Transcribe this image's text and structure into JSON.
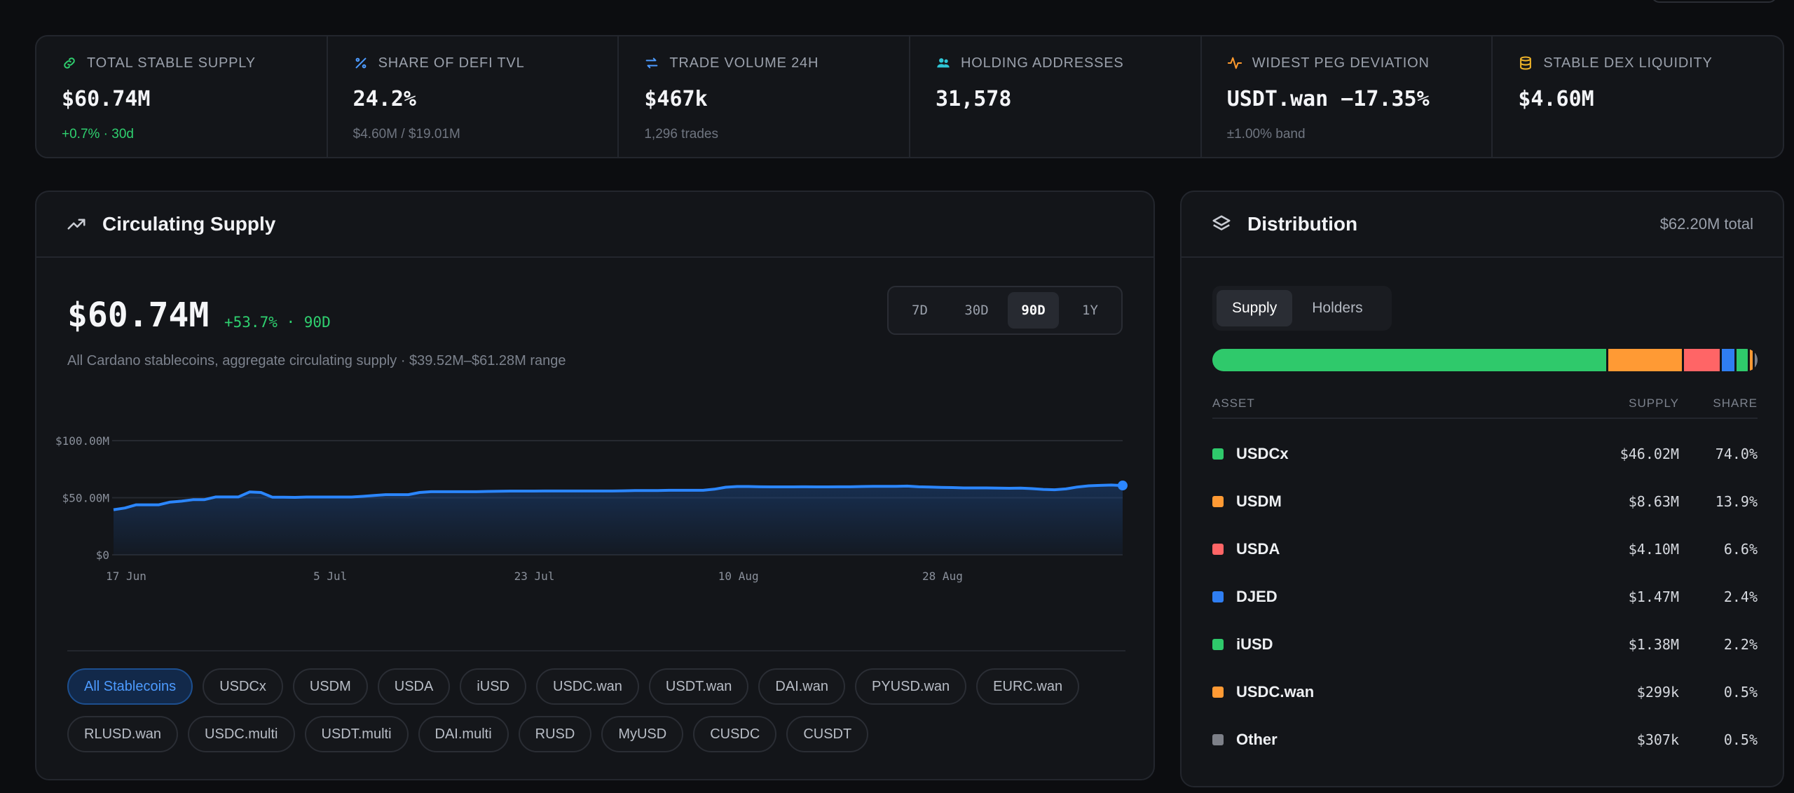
{
  "stats": [
    {
      "icon": "link-icon",
      "label": "TOTAL STABLE SUPPLY",
      "value": "$60.74M",
      "sub": "+0.7% · 30d",
      "sub_color": "green",
      "icon_color": "#2fd06f"
    },
    {
      "icon": "percent-icon",
      "label": "SHARE OF DEFI TVL",
      "value": "24.2%",
      "sub": "$4.60M / $19.01M",
      "sub_color": "gray",
      "icon_color": "#4d9bff"
    },
    {
      "icon": "swap-arrows-icon",
      "label": "TRADE VOLUME 24H",
      "value": "$467k",
      "sub": "1,296 trades",
      "sub_color": "gray",
      "icon_color": "#4d9bff"
    },
    {
      "icon": "users-icon",
      "label": "HOLDING ADDRESSES",
      "value": "31,578",
      "sub": "",
      "sub_color": "gray",
      "icon_color": "#2fc6d6"
    },
    {
      "icon": "pulse-icon",
      "label": "WIDEST PEG DEVIATION",
      "value": "USDT.wan −17.35%",
      "sub": "±1.00% band",
      "sub_color": "gray",
      "icon_color": "#ff9a2e"
    },
    {
      "icon": "database-icon",
      "label": "STABLE DEX LIQUIDITY",
      "value": "$4.60M",
      "sub": "",
      "sub_color": "gray",
      "icon_color": "#f0b429"
    }
  ],
  "supply_panel": {
    "title": "Circulating Supply",
    "value": "$60.74M",
    "change": "+53.7% · 90D",
    "subtitle": "All Cardano stablecoins, aggregate circulating supply · $39.52M–$61.28M range",
    "ranges": [
      "7D",
      "30D",
      "90D",
      "1Y"
    ],
    "active_range": "90D",
    "chips_row1": [
      "All Stablecoins",
      "USDCx",
      "USDM",
      "USDA",
      "iUSD",
      "USDC.wan",
      "USDT.wan",
      "DAI.wan",
      "PYUSD.wan",
      "EURC.wan"
    ],
    "chips_row2": [
      "RLUSD.wan",
      "USDC.multi",
      "USDT.multi",
      "DAI.multi",
      "RUSD",
      "MyUSD",
      "CUSDC",
      "CUSDT"
    ],
    "active_chip": "All Stablecoins"
  },
  "chart_data": {
    "type": "area",
    "title": "",
    "xlabel": "",
    "ylabel": "",
    "ylim": [
      0,
      100
    ],
    "y_unit": "$M",
    "y_ticks": [
      "$0",
      "$50.00M",
      "$100.00M"
    ],
    "x_ticks": [
      "17 Jun",
      "5 Jul",
      "23 Jul",
      "10 Aug",
      "28 Aug"
    ],
    "x_tick_days": [
      0,
      18,
      36,
      54,
      72
    ],
    "series": [
      {
        "days": [
          0,
          1,
          2,
          3,
          4,
          5,
          6,
          7,
          8,
          9,
          10,
          11,
          12,
          13,
          14,
          15,
          16,
          17,
          18,
          19,
          20,
          21,
          22,
          23,
          24,
          25,
          26,
          27,
          28,
          29,
          30,
          31,
          32,
          33,
          34,
          35,
          36,
          37,
          38,
          39,
          40,
          41,
          42,
          43,
          44,
          45,
          46,
          47,
          48,
          49,
          50,
          51,
          52,
          53,
          54,
          55,
          56,
          57,
          58,
          59,
          60,
          61,
          62,
          63,
          64,
          65,
          66,
          67,
          68,
          69,
          70,
          71,
          72,
          73,
          74,
          75,
          76,
          77,
          78,
          79,
          80,
          81,
          82,
          83,
          84,
          85,
          86,
          87,
          88,
          89
        ],
        "values": [
          39.5,
          41.0,
          43.8,
          43.8,
          43.8,
          46.2,
          47.0,
          48.3,
          48.3,
          50.7,
          50.7,
          50.7,
          55.0,
          54.6,
          50.5,
          50.5,
          50.3,
          50.6,
          50.6,
          50.6,
          50.6,
          50.6,
          51.2,
          52.0,
          52.7,
          52.7,
          52.7,
          54.6,
          55.3,
          55.3,
          55.3,
          55.3,
          55.3,
          55.5,
          55.7,
          55.8,
          55.8,
          55.8,
          55.9,
          55.9,
          55.9,
          55.9,
          55.9,
          55.9,
          55.9,
          56.1,
          56.3,
          56.3,
          56.3,
          56.5,
          56.5,
          56.5,
          56.5,
          57.5,
          59.2,
          59.8,
          59.8,
          59.6,
          59.5,
          59.5,
          59.5,
          59.6,
          59.5,
          59.5,
          59.6,
          59.6,
          59.8,
          60.0,
          60.0,
          60.0,
          60.2,
          59.6,
          59.3,
          59.1,
          58.9,
          58.6,
          58.6,
          58.6,
          58.4,
          58.3,
          58.4,
          58.0,
          57.3,
          57.0,
          57.7,
          59.4,
          60.4,
          60.8,
          61.1,
          60.7
        ]
      }
    ]
  },
  "distribution": {
    "title": "Distribution",
    "total": "$62.20M total",
    "tabs": [
      "Supply",
      "Holders"
    ],
    "active_tab": "Supply",
    "headers": {
      "asset": "ASSET",
      "supply": "SUPPLY",
      "share": "SHARE"
    },
    "rows": [
      {
        "name": "USDCx",
        "supply": "$46.02M",
        "share": "74.0%",
        "share_value": 74.0,
        "color": "#2fc96b"
      },
      {
        "name": "USDM",
        "supply": "$8.63M",
        "share": "13.9%",
        "share_value": 13.9,
        "color": "#ff9a34"
      },
      {
        "name": "USDA",
        "supply": "$4.10M",
        "share": "6.6%",
        "share_value": 6.6,
        "color": "#ff6566"
      },
      {
        "name": "DJED",
        "supply": "$1.47M",
        "share": "2.4%",
        "share_value": 2.4,
        "color": "#2f7ef2"
      },
      {
        "name": "iUSD",
        "supply": "$1.38M",
        "share": "2.2%",
        "share_value": 2.2,
        "color": "#2fc96b"
      },
      {
        "name": "USDC.wan",
        "supply": "$299k",
        "share": "0.5%",
        "share_value": 0.5,
        "color": "#ff9a34"
      },
      {
        "name": "Other",
        "supply": "$307k",
        "share": "0.5%",
        "share_value": 0.5,
        "color": "#7d8088"
      }
    ]
  }
}
